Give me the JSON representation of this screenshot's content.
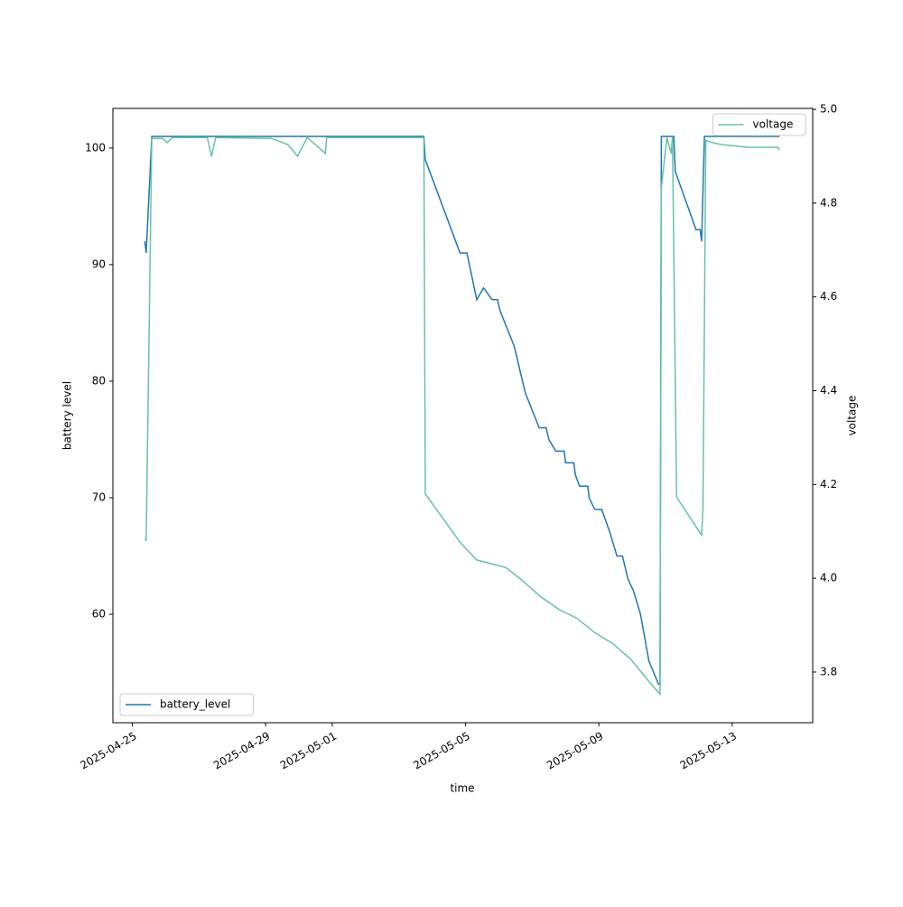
{
  "chart_data": {
    "type": "line",
    "xlabel": "time",
    "ylabel": "battery level",
    "y2label": "voltage",
    "xlim": [
      "2025-04-24T10:00",
      "2025-05-15T10:00"
    ],
    "xticks": [
      "2025-04-25",
      "2025-04-29",
      "2025-05-01",
      "2025-05-05",
      "2025-05-09",
      "2025-05-13"
    ],
    "ylim": [
      50.7,
      103.4
    ],
    "yticks": [
      60,
      70,
      80,
      90,
      100
    ],
    "y2lim": [
      3.692,
      5.002
    ],
    "y2ticks": [
      3.8,
      {
        "value": 4,
        "label": "4.0"
      },
      4.2,
      4.4,
      4.6,
      4.8,
      {
        "value": 5,
        "label": "5.0"
      }
    ],
    "grid": false,
    "series": [
      {
        "name": "battery_level",
        "color": "#1f77b4",
        "legend": "lower left",
        "x": [
          "2025-04-25T09:00",
          "2025-04-25T10:00",
          "2025-04-25T14:00",
          "2025-05-03T18:00",
          "2025-05-03T19:00",
          "2025-05-04T20:00",
          "2025-05-05T01:00",
          "2025-05-05T08:00",
          "2025-05-05T13:00",
          "2025-05-05T19:00",
          "2025-05-05T23:00",
          "2025-05-06T01:00",
          "2025-05-06T11:00",
          "2025-05-06T19:00",
          "2025-05-07T05:00",
          "2025-05-07T10:00",
          "2025-05-07T12:00",
          "2025-05-07T17:00",
          "2025-05-07T23:00",
          "2025-05-08T00:00",
          "2025-05-08T06:00",
          "2025-05-08T07:00",
          "2025-05-08T10:00",
          "2025-05-08T16:00",
          "2025-05-08T17:00",
          "2025-05-08T21:00",
          "2025-05-09T02:00",
          "2025-05-09T05:00",
          "2025-05-09T08:00",
          "2025-05-09T13:00",
          "2025-05-09T17:00",
          "2025-05-09T21:00",
          "2025-05-10T01:00",
          "2025-05-10T06:00",
          "2025-05-10T12:00",
          "2025-05-10T19:00",
          "2025-05-10T20:00",
          "2025-05-10T21:00",
          "2025-05-11T06:00",
          "2025-05-11T07:00",
          "2025-05-11T22:00",
          "2025-05-12T01:00",
          "2025-05-12T02:00",
          "2025-05-12T04:00",
          "2025-05-14T10:00"
        ],
        "values": [
          92,
          91,
          101,
          101,
          99,
          91,
          91,
          87,
          88,
          87,
          87,
          86,
          83,
          79,
          76,
          76,
          75,
          74,
          74,
          73,
          73,
          72,
          71,
          71,
          70,
          69,
          69,
          68,
          67,
          65,
          65,
          63,
          62,
          60,
          56,
          54,
          54,
          101,
          101,
          98,
          93,
          93,
          92,
          101,
          101
        ]
      },
      {
        "name": "voltage",
        "color": "#66c2a5",
        "axis": "y2",
        "legend": "upper right",
        "x": [
          "2025-04-25T09:00",
          "2025-04-25T10:00",
          "2025-04-25T14:00",
          "2025-04-25T22:00",
          "2025-04-26T01:00",
          "2025-04-26T05:00",
          "2025-04-27T06:00",
          "2025-04-27T09:00",
          "2025-04-27T12:00",
          "2025-04-29T04:00",
          "2025-04-29T16:00",
          "2025-04-29T23:00",
          "2025-04-30T06:00",
          "2025-04-30T19:00",
          "2025-04-30T20:00",
          "2025-05-03T18:00",
          "2025-05-03T19:00",
          "2025-05-04T20:00",
          "2025-05-05T08:00",
          "2025-05-06T05:00",
          "2025-05-06T15:00",
          "2025-05-07T06:00",
          "2025-05-07T19:00",
          "2025-05-08T08:00",
          "2025-05-08T21:00",
          "2025-05-09T10:00",
          "2025-05-09T23:00",
          "2025-05-10T12:00",
          "2025-05-10T20:00",
          "2025-05-10T21:00",
          "2025-05-11T01:00",
          "2025-05-11T04:00",
          "2025-05-11T05:00",
          "2025-05-11T08:00",
          "2025-05-12T02:00",
          "2025-05-12T03:00",
          "2025-05-12T05:00",
          "2025-05-12T10:00",
          "2025-05-12T16:00",
          "2025-05-13T12:00",
          "2025-05-14T09:00",
          "2025-05-14T10:00"
        ],
        "values": [
          4.085,
          4.081,
          4.938,
          4.938,
          4.929,
          4.94,
          4.94,
          4.9,
          4.94,
          4.938,
          4.925,
          4.9,
          4.94,
          4.906,
          4.94,
          4.94,
          4.18,
          4.077,
          4.039,
          4.023,
          4.0,
          3.961,
          3.934,
          3.915,
          3.884,
          3.861,
          3.827,
          3.78,
          3.753,
          4.832,
          4.94,
          4.906,
          4.94,
          4.173,
          4.092,
          4.15,
          4.934,
          4.929,
          4.925,
          4.919,
          4.919,
          4.913
        ]
      }
    ]
  }
}
